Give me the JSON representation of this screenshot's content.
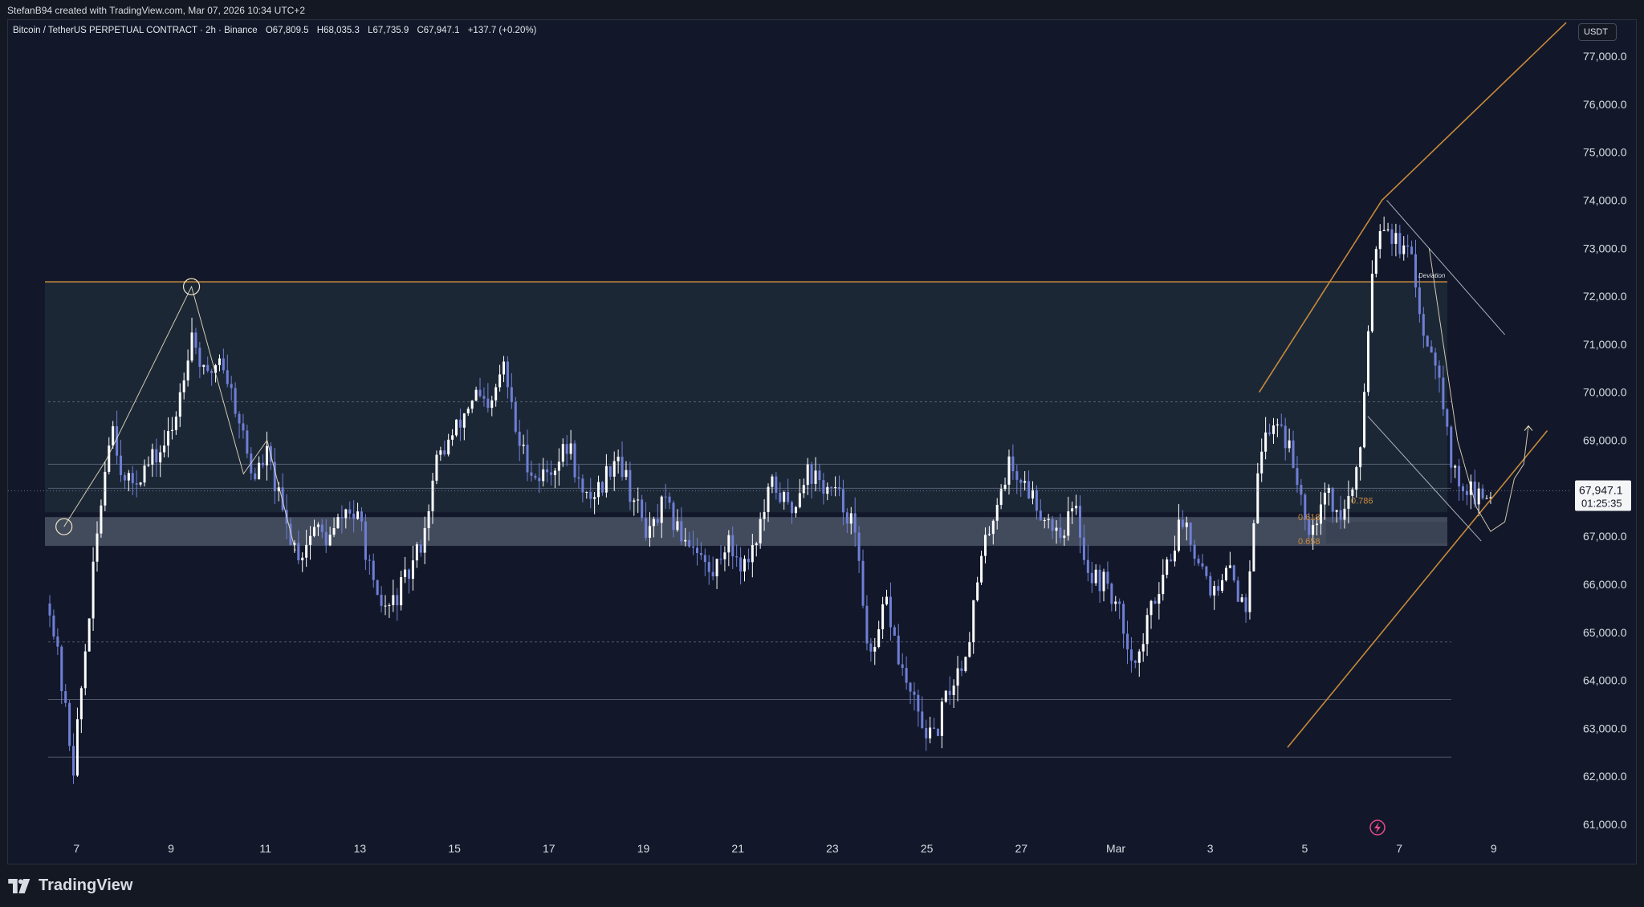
{
  "header": {
    "credit": "StefanB94 created with TradingView.com, Mar 07, 2026 10:34 UTC+2"
  },
  "symbol": {
    "name": "Bitcoin / TetherUS PERPETUAL CONTRACT · 2h · Binance",
    "open": "O67,809.5",
    "high": "H68,035.3",
    "low": "L67,735.9",
    "close": "C67,947.1",
    "change": "+137.7 (+0.20%)"
  },
  "currency_badge": "USDT",
  "price_label": {
    "price": "67,947.1",
    "countdown": "01:25:35"
  },
  "brand": {
    "name": "TradingView",
    "logo_icon": "tradingview-logo-icon"
  },
  "colors": {
    "background": "#121829",
    "candle_up": "#ffffff",
    "candle_down": "#6f7fd6",
    "trendline": "#c98a3b",
    "range_box": "#1f2a38",
    "fib_box": "#6a7686"
  },
  "chart_data": {
    "type": "candlestick",
    "y_axis": {
      "min": 60600,
      "max": 77400,
      "ticks": [
        61000,
        62000,
        63000,
        64000,
        65000,
        66000,
        67000,
        68000,
        69000,
        70000,
        71000,
        72000,
        73000,
        74000,
        75000,
        76000,
        77000
      ],
      "tick_labels": [
        "61,000.0",
        "62,000.0",
        "63,000.0",
        "64,000.0",
        "65,000.0",
        "66,000.0",
        "67,000.0",
        "68,000.0",
        "69,000.0",
        "70,000.0",
        "71,000.0",
        "72,000.0",
        "73,000.0",
        "74,000.0",
        "75,000.0",
        "76,000.0",
        "77,000.0"
      ]
    },
    "x_axis": {
      "range": [
        "Feb 6",
        "Mar 10"
      ],
      "tick_labels": [
        "7",
        "9",
        "11",
        "13",
        "15",
        "17",
        "19",
        "21",
        "23",
        "25",
        "27",
        "Mar",
        "3",
        "5",
        "7",
        "9"
      ]
    },
    "price_path": [
      [
        0.0,
        65600
      ],
      [
        0.5,
        62200
      ],
      [
        1.0,
        67000
      ],
      [
        1.3,
        69500
      ],
      [
        1.6,
        68000
      ],
      [
        1.9,
        68300
      ],
      [
        2.3,
        68700
      ],
      [
        2.6,
        69200
      ],
      [
        3.0,
        71300
      ],
      [
        3.3,
        70200
      ],
      [
        3.6,
        70800
      ],
      [
        4.0,
        69500
      ],
      [
        4.3,
        68200
      ],
      [
        4.6,
        68700
      ],
      [
        5.0,
        67200
      ],
      [
        5.3,
        66600
      ],
      [
        5.6,
        67200
      ],
      [
        5.9,
        66900
      ],
      [
        6.3,
        67600
      ],
      [
        6.6,
        67200
      ],
      [
        6.9,
        65600
      ],
      [
        7.2,
        65500
      ],
      [
        7.6,
        66200
      ],
      [
        7.9,
        67000
      ],
      [
        8.2,
        68600
      ],
      [
        8.6,
        69200
      ],
      [
        9.0,
        70000
      ],
      [
        9.3,
        69500
      ],
      [
        9.6,
        70600
      ],
      [
        9.9,
        69000
      ],
      [
        10.3,
        68200
      ],
      [
        10.6,
        68400
      ],
      [
        11.0,
        68900
      ],
      [
        11.3,
        67700
      ],
      [
        11.7,
        68100
      ],
      [
        12.0,
        68800
      ],
      [
        12.3,
        67900
      ],
      [
        12.7,
        67000
      ],
      [
        13.0,
        67700
      ],
      [
        13.3,
        67100
      ],
      [
        13.7,
        66800
      ],
      [
        14.0,
        66100
      ],
      [
        14.3,
        66900
      ],
      [
        14.7,
        66400
      ],
      [
        15.0,
        67100
      ],
      [
        15.3,
        68100
      ],
      [
        15.7,
        67500
      ],
      [
        16.0,
        68400
      ],
      [
        16.3,
        68100
      ],
      [
        16.7,
        67800
      ],
      [
        17.0,
        67300
      ],
      [
        17.4,
        64200
      ],
      [
        17.7,
        65700
      ],
      [
        18.0,
        64300
      ],
      [
        18.4,
        63200
      ],
      [
        18.7,
        62700
      ],
      [
        19.0,
        63700
      ],
      [
        19.4,
        64600
      ],
      [
        19.7,
        66400
      ],
      [
        20.0,
        67600
      ],
      [
        20.3,
        68500
      ],
      [
        20.7,
        68000
      ],
      [
        21.0,
        67500
      ],
      [
        21.4,
        67100
      ],
      [
        21.7,
        67600
      ],
      [
        22.0,
        66200
      ],
      [
        22.4,
        66000
      ],
      [
        22.7,
        65200
      ],
      [
        23.0,
        64300
      ],
      [
        23.4,
        65800
      ],
      [
        23.7,
        66600
      ],
      [
        24.0,
        67400
      ],
      [
        24.3,
        66600
      ],
      [
        24.7,
        65700
      ],
      [
        25.0,
        66400
      ],
      [
        25.3,
        65300
      ],
      [
        25.6,
        68800
      ],
      [
        26.0,
        69500
      ],
      [
        26.3,
        68600
      ],
      [
        26.7,
        67100
      ],
      [
        27.0,
        68100
      ],
      [
        27.3,
        67300
      ],
      [
        27.7,
        68300
      ],
      [
        28.0,
        72700
      ],
      [
        28.2,
        73700
      ],
      [
        28.5,
        73100
      ],
      [
        28.8,
        72800
      ],
      [
        29.1,
        71200
      ],
      [
        29.4,
        70600
      ],
      [
        29.7,
        68300
      ],
      [
        30.0,
        68000
      ],
      [
        30.3,
        67700
      ],
      [
        30.5,
        67947
      ]
    ],
    "levels": [
      {
        "price": 72300,
        "label": "Deviation"
      },
      {
        "price": 69800
      },
      {
        "price": 68500
      },
      {
        "price": 68000
      },
      {
        "price": 64800
      },
      {
        "price": 63600
      },
      {
        "price": 62400
      }
    ],
    "range_box": {
      "from": "Feb 6",
      "to": "Mar 8",
      "high": 72300,
      "low": 67500
    },
    "support_zone": {
      "from": "Feb 6",
      "to": "Mar 8",
      "high": 67400,
      "low": 66800
    },
    "fib_levels": [
      {
        "label": "0.786",
        "price": 67750
      },
      {
        "label": "0.618",
        "price": 67400
      },
      {
        "label": "0.658",
        "price": 66900
      }
    ],
    "trendlines": [
      {
        "name": "channel-upper",
        "points": [
          [
            25.6,
            70000
          ],
          [
            28.2,
            74000
          ],
          [
            32.1,
            77700
          ]
        ]
      },
      {
        "name": "channel-lower",
        "points": [
          [
            26.2,
            62600
          ],
          [
            31.7,
            69200
          ]
        ]
      },
      {
        "name": "descending-upper",
        "points": [
          [
            28.3,
            74000
          ],
          [
            30.8,
            71200
          ]
        ]
      },
      {
        "name": "descending-lower",
        "points": [
          [
            27.9,
            69500
          ],
          [
            30.3,
            66900
          ]
        ]
      },
      {
        "name": "projection",
        "points": [
          [
            29.2,
            73000
          ],
          [
            29.8,
            69000
          ],
          [
            30.2,
            67600
          ],
          [
            30.5,
            67100
          ],
          [
            30.8,
            67300
          ],
          [
            31.0,
            68200
          ],
          [
            31.2,
            68500
          ],
          [
            31.3,
            69300
          ]
        ]
      }
    ],
    "annotations": [
      "Deviation"
    ],
    "current_price": 67947.1
  }
}
